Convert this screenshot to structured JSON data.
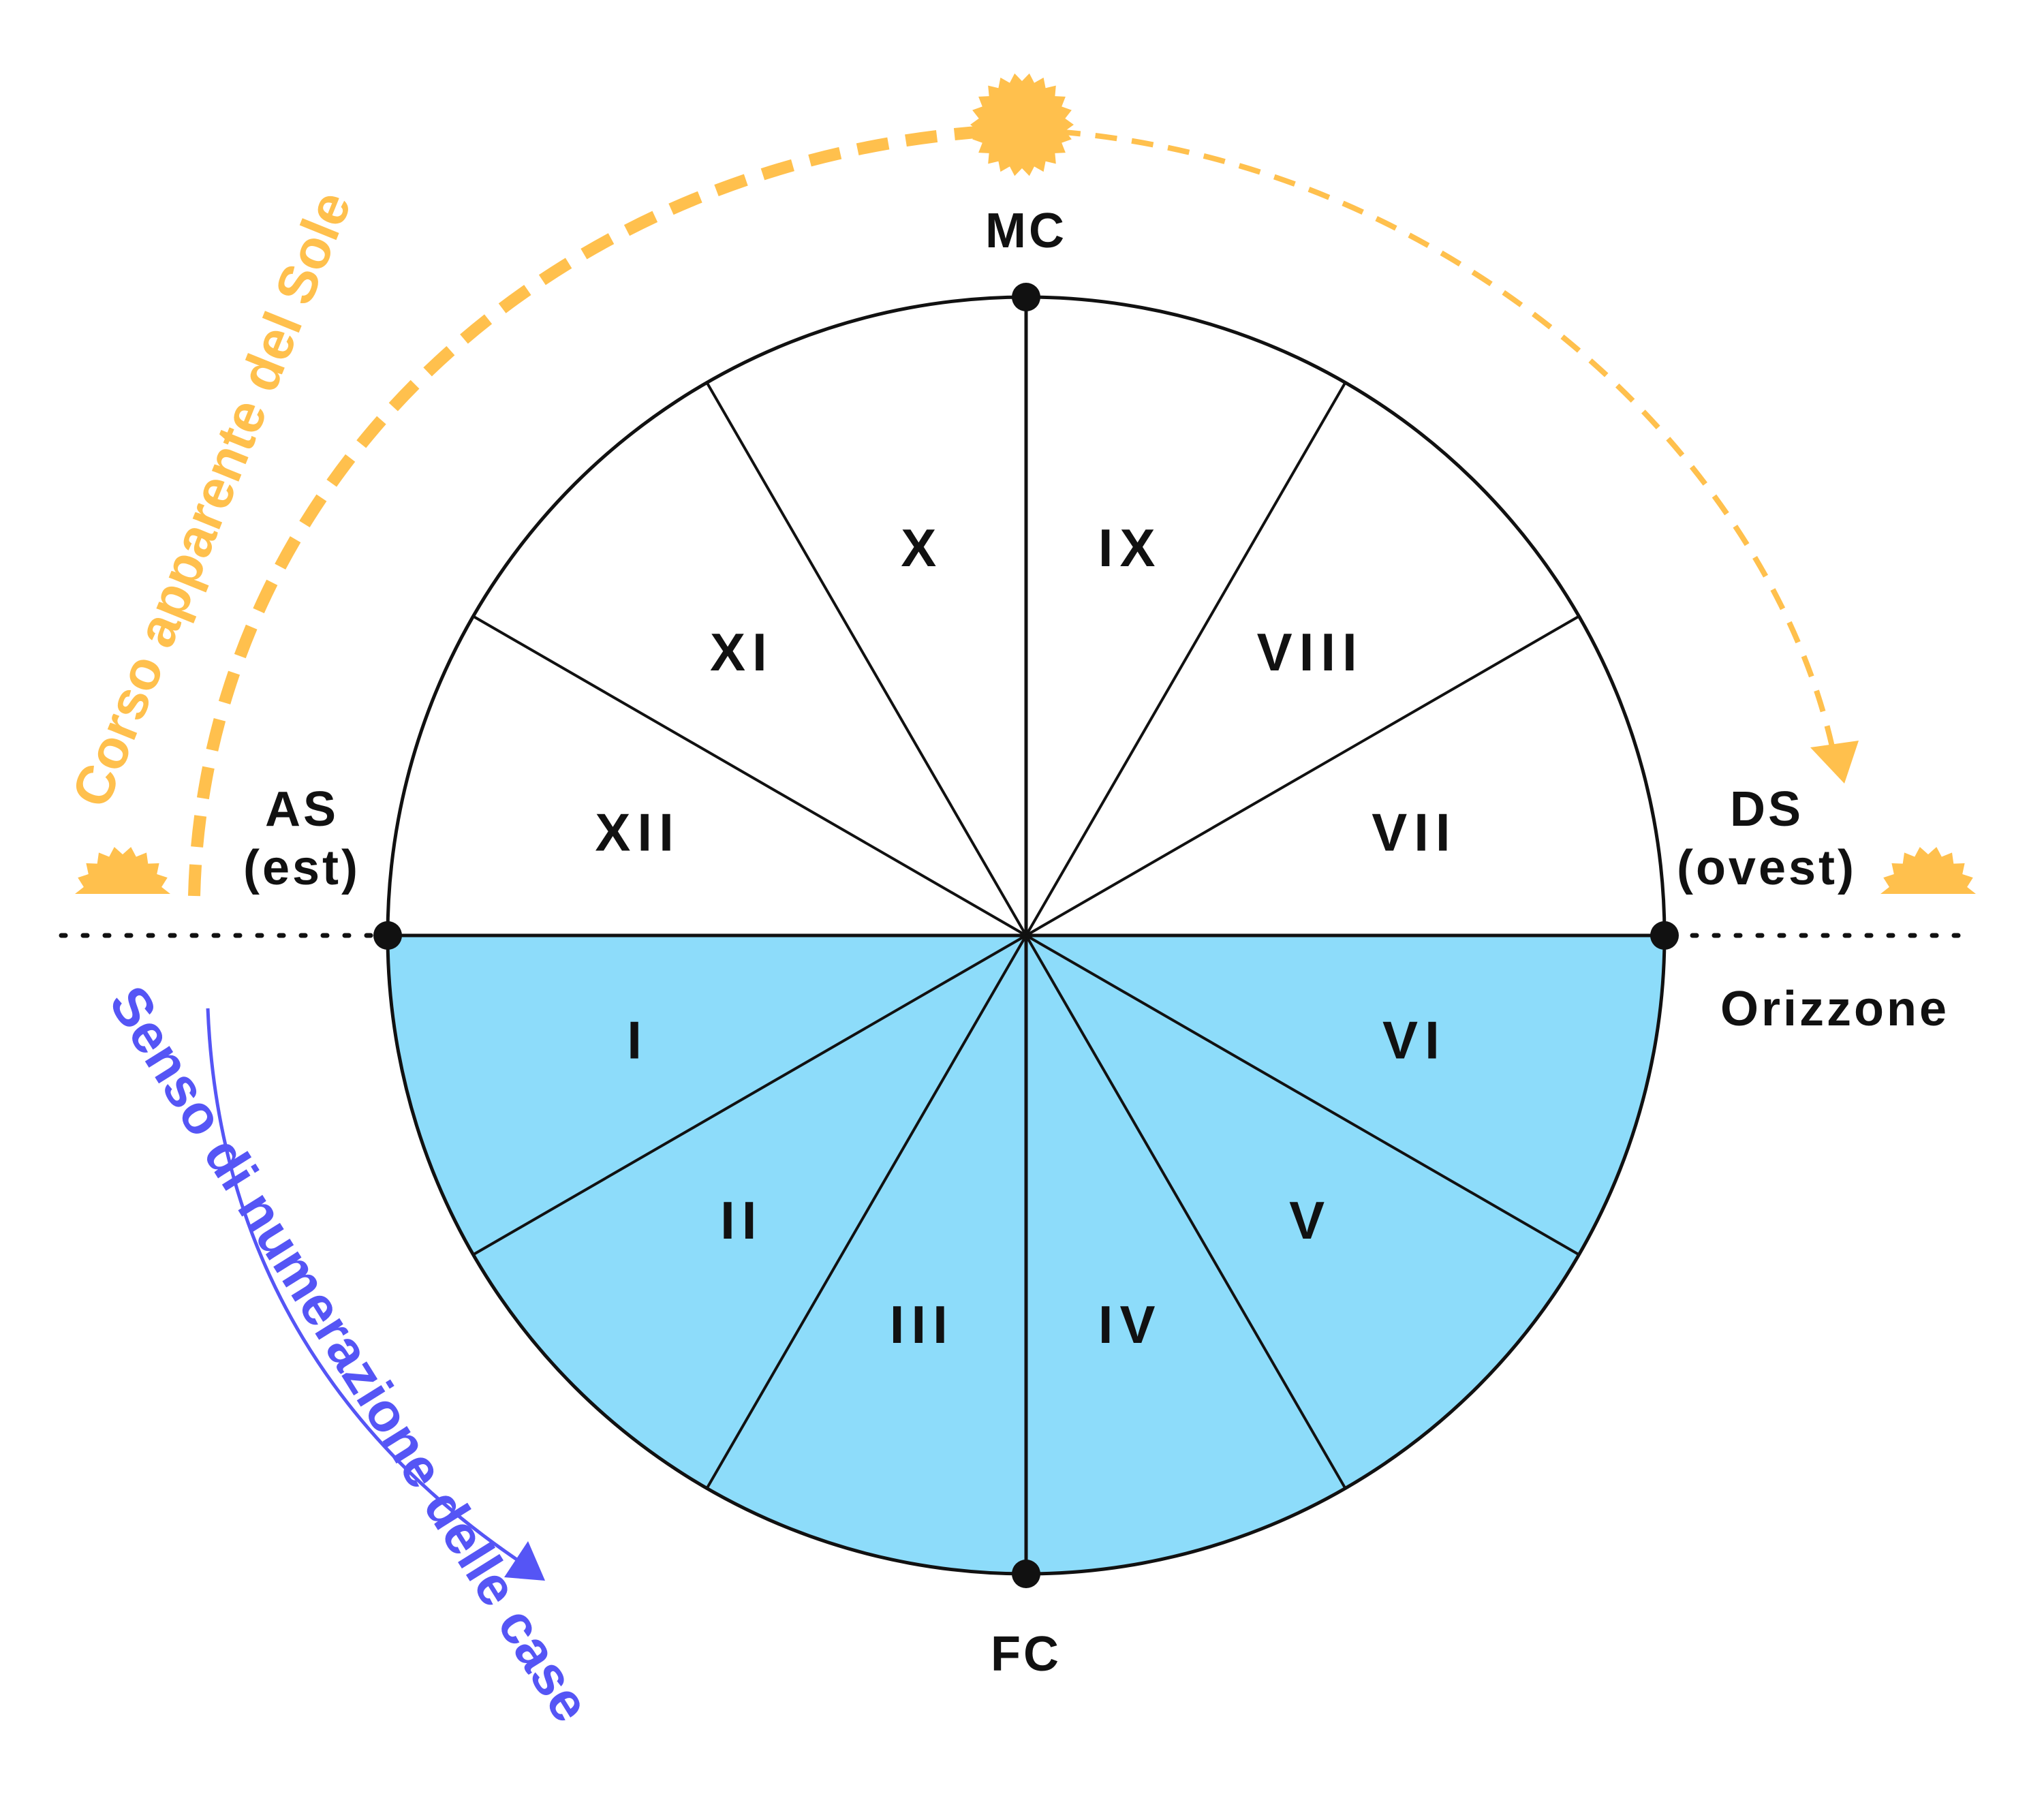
{
  "points": {
    "mc": "MC",
    "fc": "FC",
    "as": "AS",
    "as_sub": "(est)",
    "ds": "DS",
    "ds_sub": "(ovest)"
  },
  "horizon_label": "Orizzone",
  "sun_path_label": "Corso apparente del Sole",
  "numbering_label": "Senso di numerazione delle case",
  "houses": [
    "I",
    "II",
    "III",
    "IV",
    "V",
    "VI",
    "VII",
    "VIII",
    "IX",
    "X",
    "XI",
    "XII"
  ],
  "colors": {
    "below_horizon": "#8ddcfa",
    "above_horizon": "#ffffff",
    "sun": "#ffc04d",
    "numbering_arrow": "#5555f5",
    "lines": "#111111"
  },
  "icons": {
    "sun": "sun-icon",
    "rising_sun": "rising-sun-icon",
    "setting_sun": "setting-sun-icon"
  }
}
